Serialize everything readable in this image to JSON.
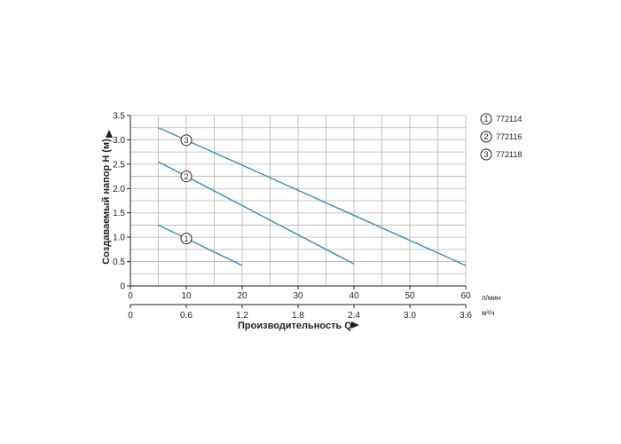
{
  "chart_data": {
    "type": "line",
    "ylabel": "Создаваемый напор H (м)",
    "xlabel": "Производительность Q",
    "ylim": [
      0,
      3.5
    ],
    "yticks": [
      "0",
      "0.5",
      "1.0",
      "1.5",
      "2.0",
      "2.5",
      "3.0",
      "3.5"
    ],
    "x_lpm": {
      "unit": "л/мин",
      "range": [
        0,
        60
      ],
      "ticks": [
        "0",
        "10",
        "20",
        "30",
        "40",
        "50",
        "60"
      ]
    },
    "x_m3h": {
      "unit": "м³/ч",
      "range": [
        0,
        3.6
      ],
      "ticks": [
        "0",
        "0.6",
        "1.2",
        "1.8",
        "2.4",
        "3.0",
        "3.6"
      ]
    },
    "grid": true,
    "legend_position": "right",
    "series": [
      {
        "name": "772114",
        "marker": "1",
        "x": [
          5,
          20
        ],
        "y": [
          1.25,
          0.42
        ]
      },
      {
        "name": "772116",
        "marker": "2",
        "x": [
          5,
          40
        ],
        "y": [
          2.55,
          0.45
        ]
      },
      {
        "name": "772118",
        "marker": "3",
        "x": [
          5,
          60
        ],
        "y": [
          3.25,
          0.42
        ]
      }
    ],
    "line_color": "#3b8bb0"
  }
}
